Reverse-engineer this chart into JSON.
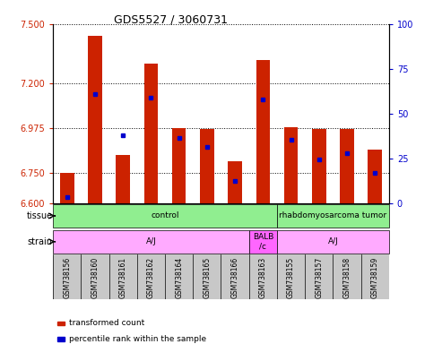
{
  "title": "GDS5527 / 3060731",
  "samples": [
    "GSM738156",
    "GSM738160",
    "GSM738161",
    "GSM738162",
    "GSM738164",
    "GSM738165",
    "GSM738166",
    "GSM738163",
    "GSM738155",
    "GSM738157",
    "GSM738158",
    "GSM738159"
  ],
  "bar_tops": [
    6.75,
    7.44,
    6.84,
    7.3,
    6.975,
    6.97,
    6.81,
    7.32,
    6.98,
    6.97,
    6.97,
    6.87
  ],
  "bar_base": 6.6,
  "blue_vals": [
    6.63,
    7.15,
    6.94,
    7.13,
    6.925,
    6.88,
    6.71,
    7.12,
    6.92,
    6.82,
    6.85,
    6.75
  ],
  "ylim_left": [
    6.6,
    7.5
  ],
  "ylim_right": [
    0,
    100
  ],
  "yticks_left": [
    6.6,
    6.75,
    6.975,
    7.2,
    7.5
  ],
  "yticks_right": [
    0,
    25,
    50,
    75,
    100
  ],
  "bar_color": "#cc2200",
  "blue_color": "#0000cc",
  "grid_color": "black",
  "tick_color_left": "#cc2200",
  "tick_color_right": "#0000cc",
  "xticklabel_bg": "#c8c8c8",
  "bar_width": 0.5,
  "legend_items": [
    {
      "label": "transformed count",
      "color": "#cc2200"
    },
    {
      "label": "percentile rank within the sample",
      "color": "#0000cc"
    }
  ],
  "tissue_groups": [
    {
      "label": "control",
      "start": 0,
      "end": 7,
      "color": "#90ee90"
    },
    {
      "label": "rhabdomyosarcoma tumor",
      "start": 8,
      "end": 11,
      "color": "#90ee90"
    }
  ],
  "strain_groups": [
    {
      "label": "A/J",
      "start": 0,
      "end": 6,
      "color": "#ffaaff"
    },
    {
      "label": "BALB\n/c",
      "start": 7,
      "end": 7,
      "color": "#ff66ff"
    },
    {
      "label": "A/J",
      "start": 8,
      "end": 11,
      "color": "#ffaaff"
    }
  ]
}
